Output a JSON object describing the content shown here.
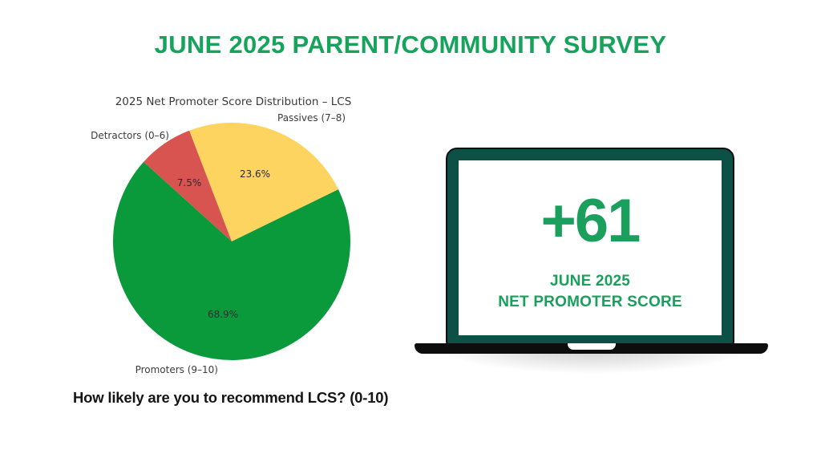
{
  "page": {
    "title": "JUNE 2025 PARENT/COMMUNITY SURVEY",
    "question": "How likely are you to recommend LCS? (0-10)"
  },
  "chart_data": {
    "type": "pie",
    "title": "2025 Net Promoter Score Distribution – LCS",
    "start_angle": 26,
    "counterclockwise": true,
    "slices": [
      {
        "label": "Passives (7–8)",
        "value": 23.6,
        "pct_label": "23.6%",
        "color": "#fcd45f"
      },
      {
        "label": "Detractors (0–6)",
        "value": 7.5,
        "pct_label": "7.5%",
        "color": "#d85450"
      },
      {
        "label": "Promoters (9–10)",
        "value": 68.9,
        "pct_label": "68.9%",
        "color": "#0a9a3b"
      }
    ]
  },
  "laptop": {
    "score": "+61",
    "caption_line1": "JUNE 2025",
    "caption_line2": "NET PROMOTER SCORE"
  },
  "colors": {
    "heading_green": "#16a35c",
    "score_green": "#1aa05c",
    "laptop_frame_green": "#0c5046",
    "laptop_base_black": "#0d0d0d",
    "label_gray": "#3c3c3c"
  }
}
